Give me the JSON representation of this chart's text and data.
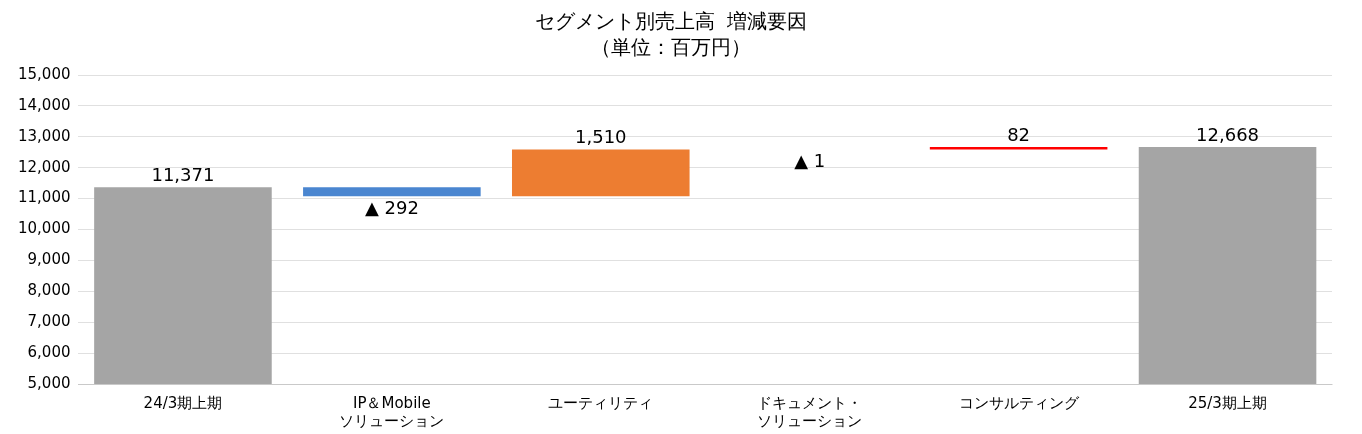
{
  "chart_data": {
    "type": "bar",
    "title": "セグメント別売上高  増減要因",
    "subtitle": "（単位：百万円）",
    "categories": [
      "24/3期上期",
      "IP＆Mobileソリューション",
      "ユーティリティ",
      "ドキュメント・ソリューション",
      "コンサルティング",
      "25/3期上期"
    ],
    "values": [
      11371,
      -292,
      1510,
      -1,
      82,
      12668
    ],
    "base": [
      null,
      11371,
      11079,
      12589,
      12588,
      null
    ],
    "colors": [
      "#a5a5a5",
      "#4a86d0",
      "#ed7d31",
      "#4a86d0",
      "#ff0000",
      "#a5a5a5"
    ],
    "value_labels": [
      "11,371",
      "▲ 292",
      "1,510",
      "▲ 1",
      "82",
      "12,668"
    ],
    "ylim": [
      5000,
      15000
    ],
    "yticks": [
      {
        "value": 5000,
        "label": "5,000"
      },
      {
        "value": 6000,
        "label": "6,000"
      },
      {
        "value": 7000,
        "label": "7,000"
      },
      {
        "value": 8000,
        "label": "8,000"
      },
      {
        "value": 9000,
        "label": "9,000"
      },
      {
        "value": 10000,
        "label": "10,000"
      },
      {
        "value": 11000,
        "label": "11,000"
      },
      {
        "value": 12000,
        "label": "12,000"
      },
      {
        "value": 13000,
        "label": "13,000"
      },
      {
        "value": 14000,
        "label": "14,000"
      },
      {
        "value": 15000,
        "label": "15,000"
      }
    ],
    "grid": "y",
    "legend": false
  }
}
